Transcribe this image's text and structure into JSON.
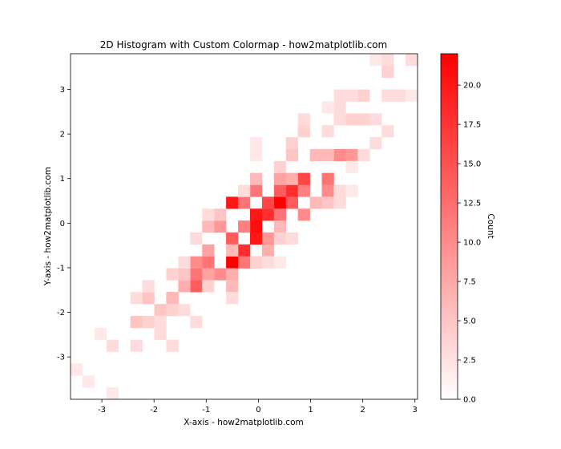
{
  "chart_data": {
    "type": "heatmap",
    "title": "2D Histogram with Custom Colormap - how2matplotlib.com",
    "xlabel": "X-axis - how2matplotlib.com",
    "ylabel": "Y-axis - how2matplotlib.com",
    "xlim": [
      -3.6,
      3.05
    ],
    "ylim": [
      -3.95,
      3.8
    ],
    "x_ticks": [
      -3,
      -2,
      -1,
      0,
      1,
      2,
      3
    ],
    "y_ticks": [
      -3,
      -2,
      -1,
      0,
      1,
      2,
      3
    ],
    "bins": {
      "x_edges": [
        -3.6,
        3.05
      ],
      "y_edges": [
        -3.95,
        3.8
      ],
      "nx": 29,
      "ny": 29
    },
    "colormap": {
      "low": "#ffffff",
      "high": "#ff0000"
    },
    "colorbar": {
      "label": "Count",
      "min": 0,
      "max": 22,
      "ticks": [
        0.0,
        2.5,
        5.0,
        7.5,
        10.0,
        12.5,
        15.0,
        17.5,
        20.0
      ],
      "tick_labels": [
        "0.0",
        "2.5",
        "5.0",
        "7.5",
        "10.0",
        "12.5",
        "15.0",
        "17.5",
        "20.0"
      ]
    },
    "cells": [
      [
        -0.45,
        0.35,
        20
      ],
      [
        0.35,
        0.35,
        22
      ],
      [
        -0.6,
        -0.8,
        22
      ],
      [
        -0.15,
        0.15,
        20
      ],
      [
        -0.15,
        0.0,
        21
      ],
      [
        0.1,
        0.1,
        18
      ],
      [
        -0.1,
        -0.35,
        20
      ],
      [
        -0.3,
        -0.55,
        18
      ],
      [
        0.6,
        0.8,
        18
      ],
      [
        -0.6,
        -0.4,
        14
      ],
      [
        0.1,
        0.45,
        16
      ],
      [
        0.3,
        0.6,
        14
      ],
      [
        0.55,
        0.5,
        14
      ],
      [
        0.8,
        0.6,
        11
      ],
      [
        0.5,
        0.2,
        12
      ],
      [
        0.8,
        0.25,
        10
      ],
      [
        -1.25,
        -1.45,
        14
      ],
      [
        -1.2,
        -1.05,
        12
      ],
      [
        -0.9,
        -0.95,
        12
      ],
      [
        -0.35,
        -0.8,
        12
      ],
      [
        -1.2,
        -0.75,
        10
      ],
      [
        -1.55,
        -1.75,
        10
      ],
      [
        -0.3,
        0.5,
        12
      ],
      [
        0.0,
        0.8,
        12
      ],
      [
        0.95,
        1.05,
        16
      ],
      [
        1.25,
        1.05,
        12
      ],
      [
        1.5,
        1.65,
        10
      ],
      [
        1.75,
        1.65,
        9
      ],
      [
        -0.9,
        -0.5,
        8
      ],
      [
        -0.65,
        -1.2,
        10
      ],
      [
        -0.4,
        -1.25,
        7
      ],
      [
        0.0,
        -0.75,
        9
      ],
      [
        0.25,
        -0.5,
        7
      ],
      [
        0.5,
        -0.1,
        6
      ],
      [
        0.15,
        -0.3,
        9
      ],
      [
        -0.35,
        -0.1,
        11
      ],
      [
        -0.65,
        0.0,
        9
      ],
      [
        1.0,
        1.55,
        6
      ],
      [
        1.25,
        0.7,
        10
      ],
      [
        0.35,
        1.05,
        8
      ],
      [
        0.75,
        1.55,
        5
      ],
      [
        1.25,
        1.55,
        6
      ],
      [
        2.0,
        1.65,
        6
      ],
      [
        -1.5,
        -1.45,
        7
      ],
      [
        -1.75,
        -1.55,
        6
      ],
      [
        -2.0,
        -1.75,
        5
      ],
      [
        -0.9,
        -1.25,
        8
      ],
      [
        -0.6,
        -1.5,
        6
      ],
      [
        -0.95,
        -0.2,
        6
      ],
      [
        -0.65,
        0.25,
        5
      ],
      [
        0.0,
        1.1,
        6
      ],
      [
        0.65,
        1.1,
        7
      ],
      [
        1.25,
        0.45,
        5
      ],
      [
        1.0,
        0.35,
        6
      ],
      [
        -2.2,
        -2.25,
        4
      ],
      [
        -2.45,
        -2.25,
        5
      ],
      [
        -1.95,
        -2.05,
        5
      ],
      [
        -1.7,
        -1.95,
        4
      ],
      [
        -1.45,
        -2.05,
        3
      ],
      [
        -1.2,
        -2.2,
        3
      ],
      [
        -2.4,
        -1.8,
        3
      ],
      [
        -2.7,
        -2.75,
        3
      ],
      [
        -2.95,
        -2.55,
        2
      ],
      [
        -2.45,
        -2.75,
        3
      ],
      [
        -1.95,
        -2.55,
        3
      ],
      [
        -1.55,
        -2.75,
        3
      ],
      [
        -1.85,
        -2.25,
        3
      ],
      [
        -3.4,
        -3.15,
        2
      ],
      [
        -3.2,
        -3.45,
        2
      ],
      [
        -2.9,
        -3.9,
        2
      ],
      [
        -1.45,
        -1.05,
        5
      ],
      [
        -1.7,
        -1.1,
        4
      ],
      [
        -2.2,
        -1.35,
        3
      ],
      [
        -1.45,
        -0.75,
        3
      ],
      [
        -1.25,
        -0.45,
        3
      ],
      [
        -0.95,
        -1.5,
        4
      ],
      [
        -0.4,
        -1.55,
        3
      ],
      [
        -0.1,
        -0.95,
        4
      ],
      [
        0.25,
        -0.75,
        3
      ],
      [
        0.5,
        -0.3,
        4
      ],
      [
        0.75,
        -0.25,
        3
      ],
      [
        -1.0,
        0.3,
        3
      ],
      [
        -0.35,
        0.8,
        3
      ],
      [
        0.0,
        1.55,
        2
      ],
      [
        0.3,
        1.3,
        4
      ],
      [
        0.6,
        1.75,
        4
      ],
      [
        0.9,
        2.05,
        4
      ],
      [
        1.25,
        1.95,
        3
      ],
      [
        0.95,
        2.25,
        3
      ],
      [
        1.55,
        2.35,
        3
      ],
      [
        1.75,
        2.25,
        4
      ],
      [
        2.0,
        2.35,
        4
      ],
      [
        2.25,
        2.35,
        3
      ],
      [
        2.5,
        2.1,
        3
      ],
      [
        1.45,
        2.85,
        3
      ],
      [
        1.85,
        2.85,
        3
      ],
      [
        2.1,
        2.75,
        4
      ],
      [
        2.4,
        2.85,
        3
      ],
      [
        2.75,
        2.95,
        3
      ],
      [
        2.95,
        2.95,
        2
      ],
      [
        1.25,
        2.6,
        2
      ],
      [
        1.65,
        2.55,
        3
      ],
      [
        2.3,
        1.8,
        3
      ],
      [
        2.0,
        1.4,
        3
      ],
      [
        1.75,
        1.25,
        2
      ],
      [
        1.45,
        0.85,
        3
      ],
      [
        1.75,
        0.85,
        2
      ],
      [
        1.5,
        0.35,
        3
      ],
      [
        -0.1,
        1.7,
        2
      ],
      [
        2.55,
        3.3,
        4
      ],
      [
        2.55,
        3.55,
        3
      ],
      [
        2.3,
        3.75,
        2
      ],
      [
        2.95,
        3.75,
        3
      ],
      [
        0.3,
        -1.0,
        2
      ],
      [
        -0.4,
        -0.55,
        6
      ]
    ]
  }
}
